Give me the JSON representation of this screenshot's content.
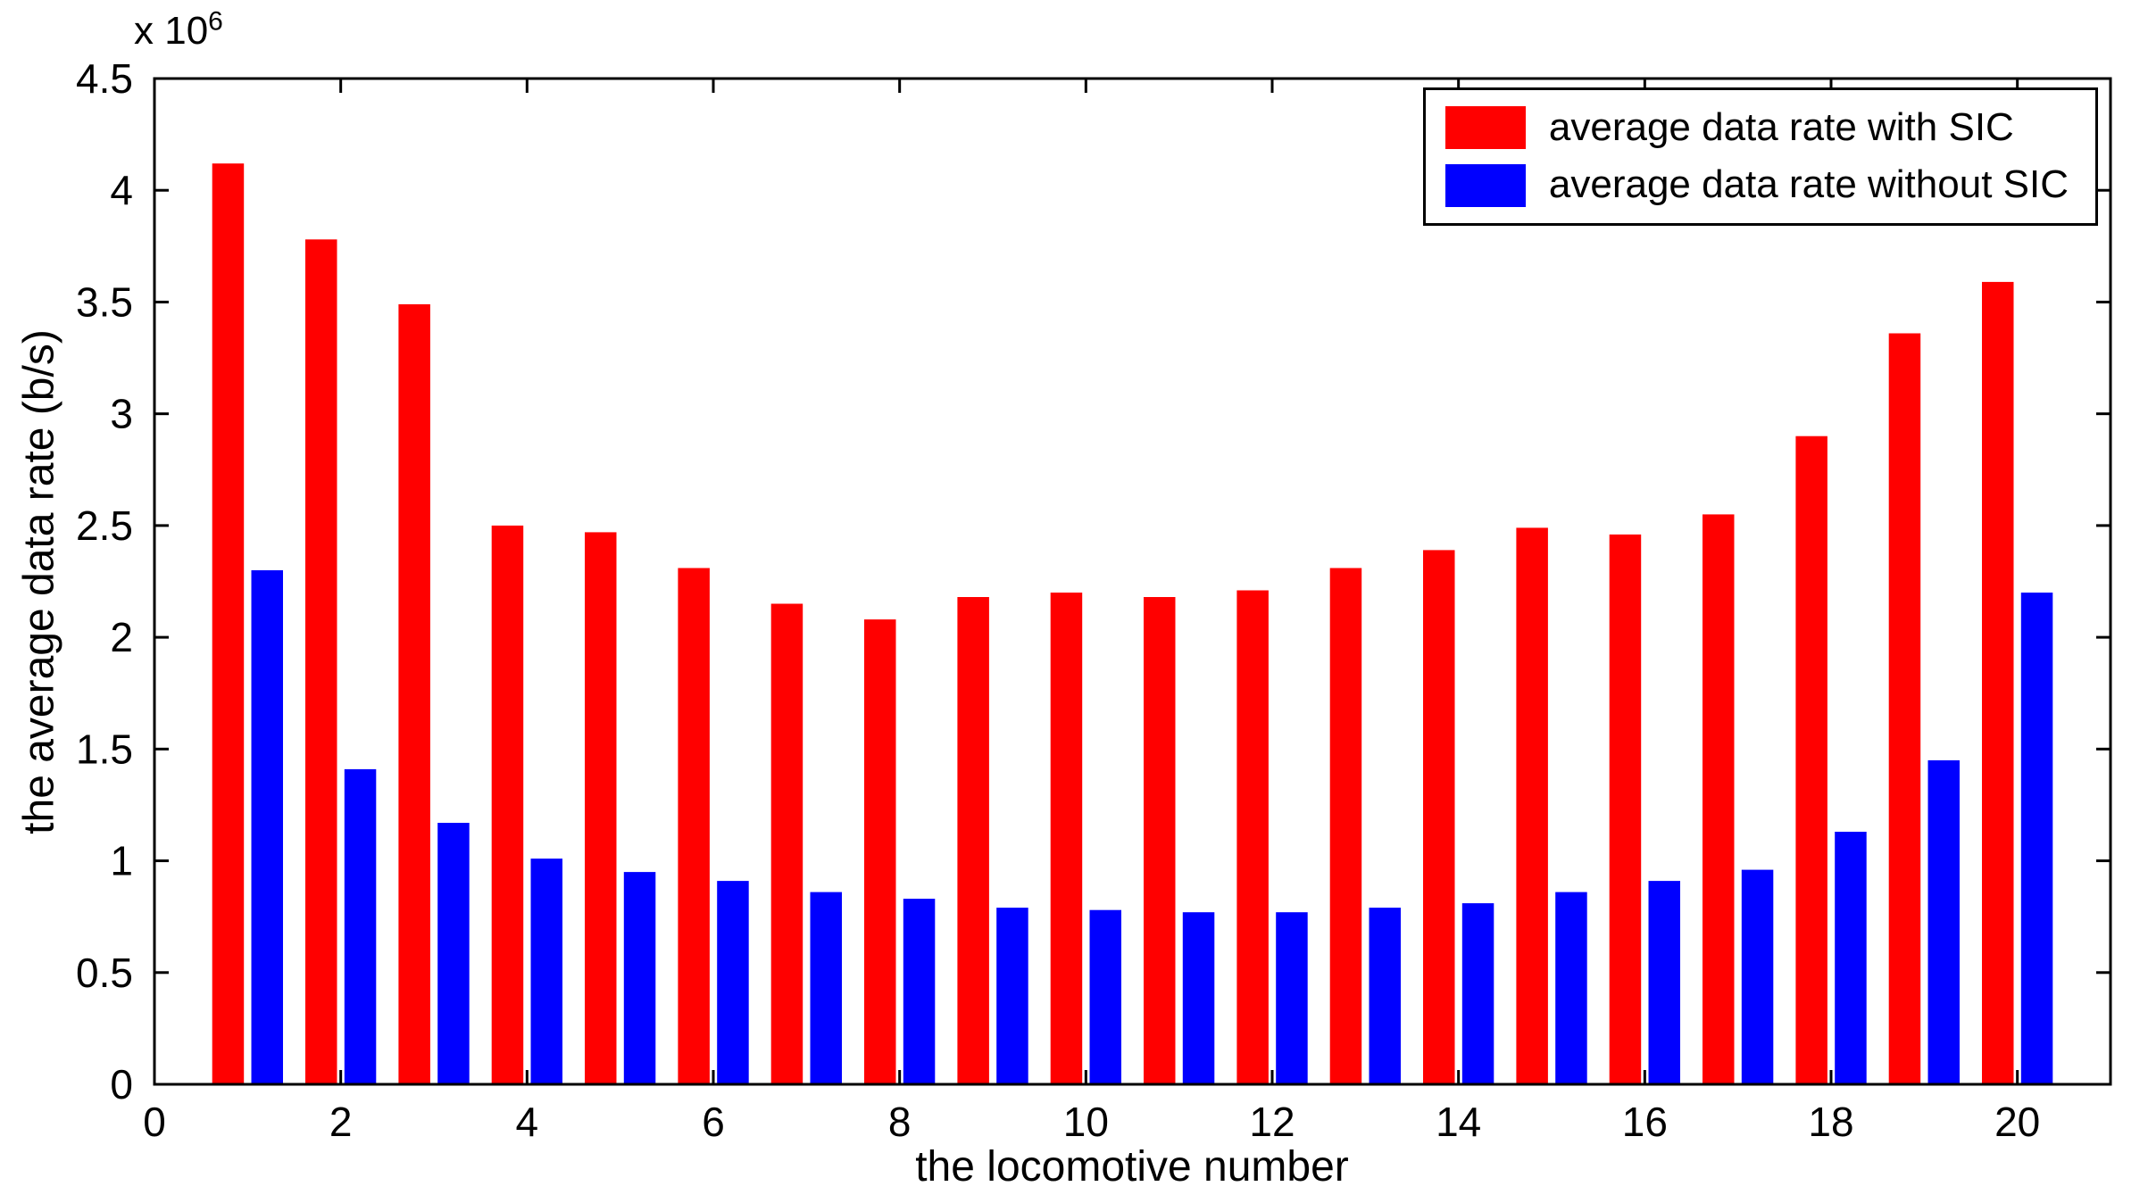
{
  "chart_data": {
    "type": "bar",
    "title": "",
    "xlabel": "the locomotive number",
    "ylabel": "the average data rate (b/s)",
    "y_axis_multiplier": {
      "base": "x 10",
      "exp": "6"
    },
    "xlim": [
      0,
      21
    ],
    "ylim": [
      0,
      4500000
    ],
    "x_ticks": [
      0,
      2,
      4,
      6,
      8,
      10,
      12,
      14,
      16,
      18,
      20
    ],
    "y_ticks": [
      0,
      0.5,
      1,
      1.5,
      2,
      2.5,
      3,
      3.5,
      4,
      4.5
    ],
    "y_tick_unit": 1000000,
    "grid": false,
    "legend_position": "top-right",
    "categories": [
      1,
      2,
      3,
      4,
      5,
      6,
      7,
      8,
      9,
      10,
      11,
      12,
      13,
      14,
      15,
      16,
      17,
      18,
      19,
      20
    ],
    "series": [
      {
        "name": "average data rate with SIC",
        "color": "#FF0000",
        "values": [
          4120000,
          3780000,
          3490000,
          2500000,
          2470000,
          2310000,
          2150000,
          2080000,
          2180000,
          2200000,
          2180000,
          2210000,
          2310000,
          2390000,
          2490000,
          2460000,
          2550000,
          2900000,
          3360000,
          3590000
        ]
      },
      {
        "name": "average data rate without SIC",
        "color": "#0000FF",
        "values": [
          2300000,
          1410000,
          1170000,
          1010000,
          950000,
          910000,
          860000,
          830000,
          790000,
          780000,
          770000,
          770000,
          790000,
          810000,
          860000,
          910000,
          960000,
          1130000,
          1450000,
          2200000
        ]
      }
    ]
  },
  "colors": {
    "axis": "#000000",
    "background": "#FFFFFF"
  }
}
